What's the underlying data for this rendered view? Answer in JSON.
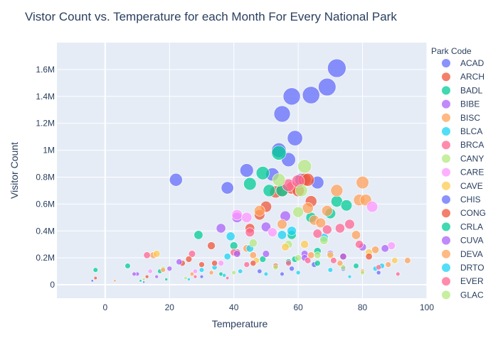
{
  "chart_data": {
    "type": "scatter",
    "title": "Vistor Count vs. Temperature for each Month For Every National Park",
    "xlabel": "Temperature",
    "ylabel": "Visitor Count",
    "xlim": [
      -15,
      100
    ],
    "ylim": [
      -100000,
      1800000
    ],
    "x_ticks": [
      0,
      20,
      40,
      60,
      80,
      100
    ],
    "x_tick_labels": [
      "0",
      "20",
      "40",
      "60",
      "80",
      "100"
    ],
    "y_ticks": [
      0,
      200000,
      400000,
      600000,
      800000,
      1000000,
      1200000,
      1400000,
      1600000
    ],
    "y_tick_labels": [
      "0",
      "0.2M",
      "0.4M",
      "0.6M",
      "0.8M",
      "1M",
      "1.2M",
      "1.4M",
      "1.6M"
    ],
    "grid": true,
    "marker_size_encodes": "Visitor Count",
    "legend": {
      "title": "Park Code",
      "placement": "right"
    },
    "series": [
      {
        "name": "ACAD",
        "color": "#636efa",
        "points": [
          [
            22,
            780000
          ],
          [
            38,
            720000
          ],
          [
            44,
            850000
          ],
          [
            52,
            820000
          ],
          [
            54,
            1000000
          ],
          [
            55,
            1270000
          ],
          [
            57,
            930000
          ],
          [
            58,
            1400000
          ],
          [
            59,
            1090000
          ],
          [
            61,
            780000
          ],
          [
            64,
            1410000
          ],
          [
            66,
            760000
          ],
          [
            69,
            1470000
          ],
          [
            72,
            1610000
          ]
        ]
      },
      {
        "name": "ARCH",
        "color": "#EF553B",
        "points": [
          [
            45,
            420000
          ],
          [
            48,
            520000
          ],
          [
            50,
            580000
          ],
          [
            53,
            690000
          ],
          [
            55,
            700000
          ],
          [
            58,
            720000
          ],
          [
            60,
            700000
          ],
          [
            62,
            780000
          ],
          [
            63,
            780000
          ],
          [
            64,
            620000
          ],
          [
            33,
            290000
          ],
          [
            41,
            240000
          ],
          [
            24,
            160000
          ],
          [
            30,
            150000
          ]
        ]
      },
      {
        "name": "BADL",
        "color": "#00cc96",
        "points": [
          [
            -3,
            110000
          ],
          [
            7,
            140000
          ],
          [
            17,
            100000
          ],
          [
            29,
            370000
          ],
          [
            40,
            290000
          ],
          [
            45,
            750000
          ],
          [
            49,
            830000
          ],
          [
            51,
            700000
          ],
          [
            54,
            980000
          ],
          [
            55,
            700000
          ],
          [
            58,
            370000
          ],
          [
            64,
            500000
          ],
          [
            70,
            530000
          ],
          [
            72,
            620000
          ],
          [
            75,
            590000
          ],
          [
            66,
            250000
          ]
        ]
      },
      {
        "name": "BIBE",
        "color": "#ab63fa",
        "points": [
          [
            10,
            80000
          ],
          [
            20,
            120000
          ],
          [
            36,
            420000
          ],
          [
            41,
            500000
          ],
          [
            50,
            430000
          ],
          [
            56,
            510000
          ],
          [
            62,
            230000
          ],
          [
            70,
            230000
          ],
          [
            80,
            280000
          ]
        ]
      },
      {
        "name": "BISC",
        "color": "#FFA15A",
        "points": [
          [
            15,
            220000
          ],
          [
            44,
            270000
          ],
          [
            48,
            550000
          ],
          [
            55,
            450000
          ],
          [
            63,
            570000
          ],
          [
            65,
            480000
          ],
          [
            67,
            460000
          ],
          [
            69,
            550000
          ],
          [
            72,
            700000
          ],
          [
            79,
            630000
          ],
          [
            80,
            760000
          ],
          [
            81,
            630000
          ],
          [
            84,
            260000
          ],
          [
            94,
            180000
          ],
          [
            78,
            370000
          ]
        ]
      },
      {
        "name": "BLCA",
        "color": "#19d3f3",
        "points": [
          [
            30,
            110000
          ],
          [
            34,
            130000
          ],
          [
            38,
            210000
          ],
          [
            39,
            360000
          ],
          [
            45,
            270000
          ],
          [
            55,
            370000
          ],
          [
            58,
            400000
          ],
          [
            68,
            350000
          ],
          [
            86,
            140000
          ]
        ]
      },
      {
        "name": "BRCA",
        "color": "#FF6692",
        "points": [
          [
            13,
            220000
          ],
          [
            27,
            230000
          ],
          [
            40,
            240000
          ],
          [
            45,
            390000
          ],
          [
            57,
            740000
          ],
          [
            60,
            770000
          ],
          [
            66,
            380000
          ],
          [
            69,
            410000
          ],
          [
            73,
            420000
          ],
          [
            76,
            450000
          ],
          [
            79,
            300000
          ]
        ]
      },
      {
        "name": "CANY",
        "color": "#B6E880",
        "points": [
          [
            18,
            120000
          ],
          [
            46,
            310000
          ],
          [
            54,
            780000
          ],
          [
            57,
            300000
          ],
          [
            60,
            540000
          ],
          [
            61,
            700000
          ],
          [
            62,
            880000
          ],
          [
            68,
            330000
          ]
        ]
      },
      {
        "name": "CARE",
        "color": "#FF97FF",
        "points": [
          [
            14,
            100000
          ],
          [
            28,
            100000
          ],
          [
            36,
            160000
          ],
          [
            41,
            520000
          ],
          [
            44,
            500000
          ],
          [
            52,
            390000
          ],
          [
            83,
            580000
          ],
          [
            89,
            290000
          ]
        ]
      },
      {
        "name": "CAVE",
        "color": "#FECB52",
        "points": [
          [
            16,
            230000
          ],
          [
            47,
            180000
          ],
          [
            56,
            280000
          ],
          [
            62,
            300000
          ],
          [
            70,
            220000
          ],
          [
            82,
            240000
          ],
          [
            90,
            180000
          ]
        ]
      },
      {
        "name": "CHIS",
        "color": "#636efa",
        "points": [
          [
            -4,
            30000
          ],
          [
            12,
            20000
          ],
          [
            30,
            60000
          ],
          [
            48,
            100000
          ],
          [
            58,
            120000
          ],
          [
            65,
            150000
          ],
          [
            74,
            120000
          ],
          [
            85,
            90000
          ],
          [
            55,
            80000
          ]
        ]
      },
      {
        "name": "CONG",
        "color": "#EF553B",
        "points": [
          [
            -3,
            50000
          ],
          [
            13,
            60000
          ],
          [
            26,
            190000
          ],
          [
            34,
            160000
          ],
          [
            46,
            160000
          ],
          [
            53,
            140000
          ],
          [
            74,
            210000
          ],
          [
            82,
            210000
          ]
        ]
      },
      {
        "name": "CRLA",
        "color": "#00cc96",
        "points": [
          [
            11,
            30000
          ],
          [
            19,
            40000
          ],
          [
            36,
            80000
          ],
          [
            49,
            190000
          ],
          [
            57,
            170000
          ],
          [
            59,
            190000
          ],
          [
            66,
            160000
          ],
          [
            78,
            140000
          ]
        ]
      },
      {
        "name": "CUVA",
        "color": "#ab63fa",
        "points": [
          [
            9,
            80000
          ],
          [
            16,
            60000
          ],
          [
            23,
            170000
          ],
          [
            41,
            230000
          ],
          [
            50,
            230000
          ],
          [
            62,
            200000
          ],
          [
            74,
            210000
          ],
          [
            87,
            270000
          ]
        ]
      },
      {
        "name": "DEVA",
        "color": "#FFA15A",
        "points": [
          [
            3,
            30000
          ],
          [
            18,
            110000
          ],
          [
            27,
            80000
          ],
          [
            33,
            90000
          ],
          [
            46,
            220000
          ],
          [
            64,
            220000
          ],
          [
            73,
            160000
          ],
          [
            80,
            100000
          ],
          [
            88,
            150000
          ]
        ]
      },
      {
        "name": "DRTO",
        "color": "#19d3f3",
        "points": [
          [
            26,
            40000
          ],
          [
            37,
            70000
          ],
          [
            42,
            100000
          ],
          [
            50,
            80000
          ],
          [
            60,
            90000
          ],
          [
            70,
            110000
          ],
          [
            76,
            60000
          ],
          [
            84,
            120000
          ]
        ]
      },
      {
        "name": "EVER",
        "color": "#FF6692",
        "points": [
          [
            28,
            60000
          ],
          [
            38,
            50000
          ],
          [
            44,
            150000
          ],
          [
            57,
            160000
          ],
          [
            63,
            180000
          ],
          [
            71,
            180000
          ],
          [
            85,
            130000
          ],
          [
            91,
            80000
          ]
        ]
      },
      {
        "name": "GLAC",
        "color": "#B6E880",
        "points": [
          [
            12,
            40000
          ],
          [
            25,
            50000
          ],
          [
            40,
            90000
          ],
          [
            53,
            130000
          ],
          [
            60,
            200000
          ],
          [
            66,
            220000
          ],
          [
            74,
            130000
          ],
          [
            80,
            90000
          ]
        ]
      }
    ]
  }
}
